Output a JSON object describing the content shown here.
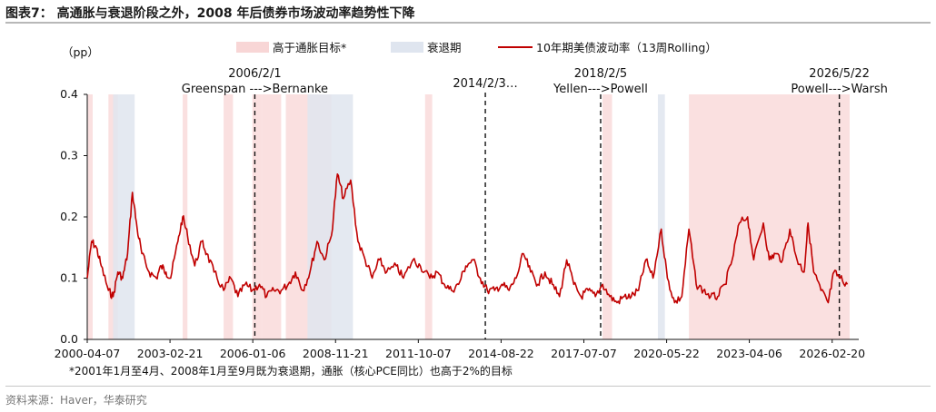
{
  "title": "图表7：  高通胀与衰退阶段之外，2008 年后债券市场波动率趋势性下降",
  "footnote": "*2001年1月至4月、2008年1月至9月既为衰退期，通胀（核心PCE同比）也高于2%的目标",
  "source": "资料来源：Haver，华泰研究",
  "colors": {
    "line": "#c00000",
    "inflation_band": "#f8d6d6",
    "recession_band": "#dfe5ef",
    "event_line": "#111111",
    "axis": "#111111"
  },
  "chart_data": {
    "type": "line",
    "ylabel": "（pp）",
    "ylim": [
      0,
      0.4
    ],
    "yticks": [
      0.0,
      0.1,
      0.2,
      0.3,
      0.4
    ],
    "ytick_labels": [
      "0.0",
      "0.1",
      "0.2",
      "0.3",
      "0.4"
    ],
    "xlim": [
      "2000-04-07",
      "2026-09-30"
    ],
    "xticks": [
      "2000-04-07",
      "2003-02-21",
      "2006-01-06",
      "2008-11-21",
      "2011-10-07",
      "2014-08-22",
      "2017-07-07",
      "2020-05-22",
      "2023-04-06",
      "2026-02-20"
    ],
    "legend": {
      "placement": "top",
      "entries": [
        {
          "label": "高于通胀目标*",
          "kind": "band",
          "color": "#f8d6d6"
        },
        {
          "label": "衰退期",
          "kind": "band",
          "color": "#dfe5ef"
        },
        {
          "label": "10年期美债波动率（13周Rolling）",
          "kind": "line",
          "color": "#c00000"
        }
      ]
    },
    "series": [
      {
        "name": "10年期美债波动率（13周Rolling）",
        "points": [
          [
            "2000-04-07",
            0.1
          ],
          [
            "2000-06-01",
            0.16
          ],
          [
            "2000-08-01",
            0.15
          ],
          [
            "2000-10-01",
            0.12
          ],
          [
            "2001-01-01",
            0.08
          ],
          [
            "2001-03-01",
            0.07
          ],
          [
            "2001-05-01",
            0.11
          ],
          [
            "2001-07-01",
            0.1
          ],
          [
            "2001-09-01",
            0.14
          ],
          [
            "2001-11-01",
            0.24
          ],
          [
            "2002-01-01",
            0.18
          ],
          [
            "2002-03-01",
            0.14
          ],
          [
            "2002-06-01",
            0.11
          ],
          [
            "2002-09-01",
            0.1
          ],
          [
            "2002-11-01",
            0.12
          ],
          [
            "2003-01-01",
            0.11
          ],
          [
            "2003-03-01",
            0.1
          ],
          [
            "2003-06-01",
            0.16
          ],
          [
            "2003-08-01",
            0.2
          ],
          [
            "2003-10-01",
            0.17
          ],
          [
            "2004-01-01",
            0.12
          ],
          [
            "2004-04-01",
            0.16
          ],
          [
            "2004-06-01",
            0.14
          ],
          [
            "2004-09-01",
            0.11
          ],
          [
            "2005-01-01",
            0.08
          ],
          [
            "2005-04-01",
            0.1
          ],
          [
            "2005-07-01",
            0.07
          ],
          [
            "2005-10-01",
            0.09
          ],
          [
            "2006-01-01",
            0.08
          ],
          [
            "2006-04-01",
            0.09
          ],
          [
            "2006-07-01",
            0.07
          ],
          [
            "2006-10-01",
            0.08
          ],
          [
            "2007-01-01",
            0.08
          ],
          [
            "2007-04-01",
            0.09
          ],
          [
            "2007-07-01",
            0.11
          ],
          [
            "2007-10-01",
            0.08
          ],
          [
            "2008-01-01",
            0.11
          ],
          [
            "2008-04-01",
            0.16
          ],
          [
            "2008-07-01",
            0.13
          ],
          [
            "2008-10-01",
            0.17
          ],
          [
            "2008-12-15",
            0.27
          ],
          [
            "2009-03-01",
            0.23
          ],
          [
            "2009-06-01",
            0.26
          ],
          [
            "2009-09-01",
            0.16
          ],
          [
            "2009-12-01",
            0.13
          ],
          [
            "2010-03-01",
            0.1
          ],
          [
            "2010-06-01",
            0.13
          ],
          [
            "2010-09-01",
            0.11
          ],
          [
            "2011-01-01",
            0.12
          ],
          [
            "2011-04-01",
            0.1
          ],
          [
            "2011-08-01",
            0.13
          ],
          [
            "2011-11-01",
            0.12
          ],
          [
            "2012-03-01",
            0.1
          ],
          [
            "2012-06-01",
            0.11
          ],
          [
            "2012-09-01",
            0.09
          ],
          [
            "2012-12-01",
            0.08
          ],
          [
            "2013-03-01",
            0.09
          ],
          [
            "2013-06-01",
            0.12
          ],
          [
            "2013-09-01",
            0.13
          ],
          [
            "2013-12-01",
            0.1
          ],
          [
            "2014-03-01",
            0.08
          ],
          [
            "2014-06-01",
            0.08
          ],
          [
            "2014-09-01",
            0.09
          ],
          [
            "2014-12-01",
            0.08
          ],
          [
            "2015-03-01",
            0.1
          ],
          [
            "2015-06-01",
            0.14
          ],
          [
            "2015-09-01",
            0.11
          ],
          [
            "2015-12-01",
            0.09
          ],
          [
            "2016-03-01",
            0.11
          ],
          [
            "2016-06-01",
            0.09
          ],
          [
            "2016-09-01",
            0.07
          ],
          [
            "2016-12-01",
            0.13
          ],
          [
            "2017-03-01",
            0.09
          ],
          [
            "2017-06-01",
            0.07
          ],
          [
            "2017-09-01",
            0.08
          ],
          [
            "2017-12-01",
            0.07
          ],
          [
            "2018-03-01",
            0.09
          ],
          [
            "2018-06-01",
            0.07
          ],
          [
            "2018-09-01",
            0.06
          ],
          [
            "2018-12-01",
            0.07
          ],
          [
            "2019-03-01",
            0.07
          ],
          [
            "2019-06-01",
            0.08
          ],
          [
            "2019-09-01",
            0.13
          ],
          [
            "2019-12-01",
            0.1
          ],
          [
            "2020-03-15",
            0.18
          ],
          [
            "2020-06-01",
            0.1
          ],
          [
            "2020-09-01",
            0.06
          ],
          [
            "2020-12-01",
            0.07
          ],
          [
            "2021-03-01",
            0.18
          ],
          [
            "2021-06-01",
            0.09
          ],
          [
            "2021-09-01",
            0.08
          ],
          [
            "2021-12-01",
            0.07
          ],
          [
            "2022-03-01",
            0.07
          ],
          [
            "2022-06-01",
            0.09
          ],
          [
            "2022-09-01",
            0.13
          ],
          [
            "2022-12-01",
            0.19
          ],
          [
            "2023-03-15",
            0.2
          ],
          [
            "2023-06-01",
            0.13
          ],
          [
            "2023-10-01",
            0.19
          ],
          [
            "2023-12-15",
            0.13
          ],
          [
            "2024-03-01",
            0.14
          ],
          [
            "2024-06-01",
            0.13
          ],
          [
            "2024-09-01",
            0.18
          ],
          [
            "2024-12-01",
            0.13
          ],
          [
            "2025-03-01",
            0.11
          ],
          [
            "2025-04-20",
            0.19
          ],
          [
            "2025-07-01",
            0.11
          ],
          [
            "2025-10-01",
            0.08
          ],
          [
            "2026-01-01",
            0.06
          ],
          [
            "2026-03-15",
            0.11
          ],
          [
            "2026-06-01",
            0.1
          ],
          [
            "2026-09-01",
            0.09
          ]
        ]
      }
    ],
    "inflation_bands": [
      [
        "2000-04-15",
        "2000-06-15"
      ],
      [
        "2001-01-01",
        "2001-04-30"
      ],
      [
        "2003-08-01",
        "2003-09-30"
      ],
      [
        "2005-01-01",
        "2005-04-30"
      ],
      [
        "2006-01-01",
        "2006-04-30"
      ],
      [
        "2006-04-30",
        "2007-01-01"
      ],
      [
        "2007-03-01",
        "2007-12-31"
      ],
      [
        "2008-01-01",
        "2008-09-30"
      ],
      [
        "2012-01-01",
        "2012-03-31"
      ],
      [
        "2018-03-01",
        "2018-06-30"
      ],
      [
        "2021-03-01",
        "2026-09-30"
      ]
    ],
    "recession_bands": [
      [
        "2001-03-01",
        "2001-11-30"
      ],
      [
        "2007-12-01",
        "2009-06-30"
      ],
      [
        "2020-02-01",
        "2020-04-30"
      ]
    ],
    "events": [
      {
        "date": "2006-02-01",
        "label_line1": "2006/2/1",
        "label_line2": "Greenspan --->Bernanke"
      },
      {
        "date": "2014-02-03",
        "label_line1": "",
        "label_line2": "2014/2/3…"
      },
      {
        "date": "2018-02-05",
        "label_line1": "2018/2/5",
        "label_line2": "Yellen--->Powell"
      },
      {
        "date": "2026-05-22",
        "label_line1": "2026/5/22",
        "label_line2": "Powell--->Warsh"
      }
    ]
  }
}
